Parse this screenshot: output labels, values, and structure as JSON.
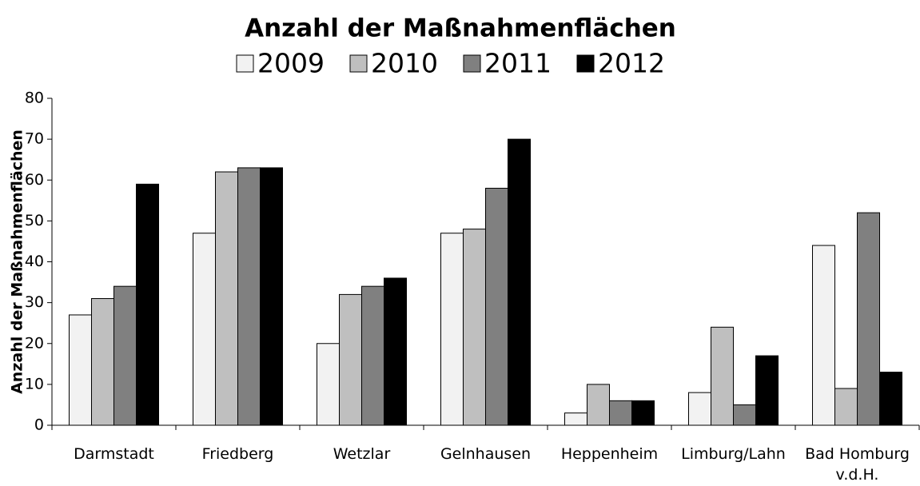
{
  "chart_data": {
    "type": "bar",
    "title": "Anzahl der Maßnahmenflächen",
    "y_label": "Anzahl der Maßnahmenflächen",
    "categories": [
      "Darmstadt",
      "Friedberg",
      "Wetzlar",
      "Gelnhausen",
      "Heppenheim",
      "Limburg/Lahn",
      "Bad Homburg v.d.H."
    ],
    "series": [
      {
        "name": "2009",
        "color": "#f2f2f2",
        "values": [
          27,
          47,
          20,
          47,
          3,
          8,
          44
        ]
      },
      {
        "name": "2010",
        "color": "#bfbfbf",
        "values": [
          31,
          62,
          32,
          48,
          10,
          24,
          9
        ]
      },
      {
        "name": "2011",
        "color": "#808080",
        "values": [
          34,
          63,
          34,
          58,
          6,
          5,
          52
        ]
      },
      {
        "name": "2012",
        "color": "#000000",
        "values": [
          59,
          63,
          36,
          70,
          6,
          17,
          13
        ]
      }
    ],
    "ylim": [
      0,
      80
    ],
    "yticks": [
      0,
      10,
      20,
      30,
      40,
      50,
      60,
      70,
      80
    ],
    "legend": "top",
    "grid": false
  }
}
